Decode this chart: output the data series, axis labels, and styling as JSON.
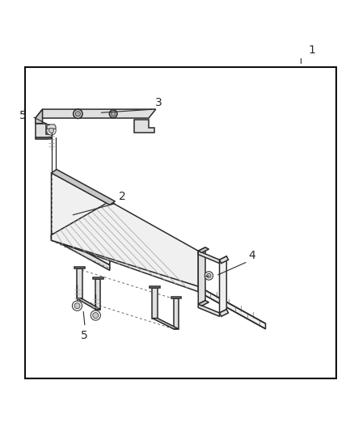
{
  "bg_color": "#ffffff",
  "lc": "#2a2a2a",
  "lc_light": "#888888",
  "fill_light": "#f0f0f0",
  "fill_mid": "#e0e0e0",
  "fill_dark": "#c8c8c8",
  "fig_width": 4.38,
  "fig_height": 5.33,
  "dpi": 100,
  "labels": [
    "1",
    "2",
    "3",
    "4",
    "5"
  ],
  "label_fs": 10,
  "border_lw": 1.5
}
